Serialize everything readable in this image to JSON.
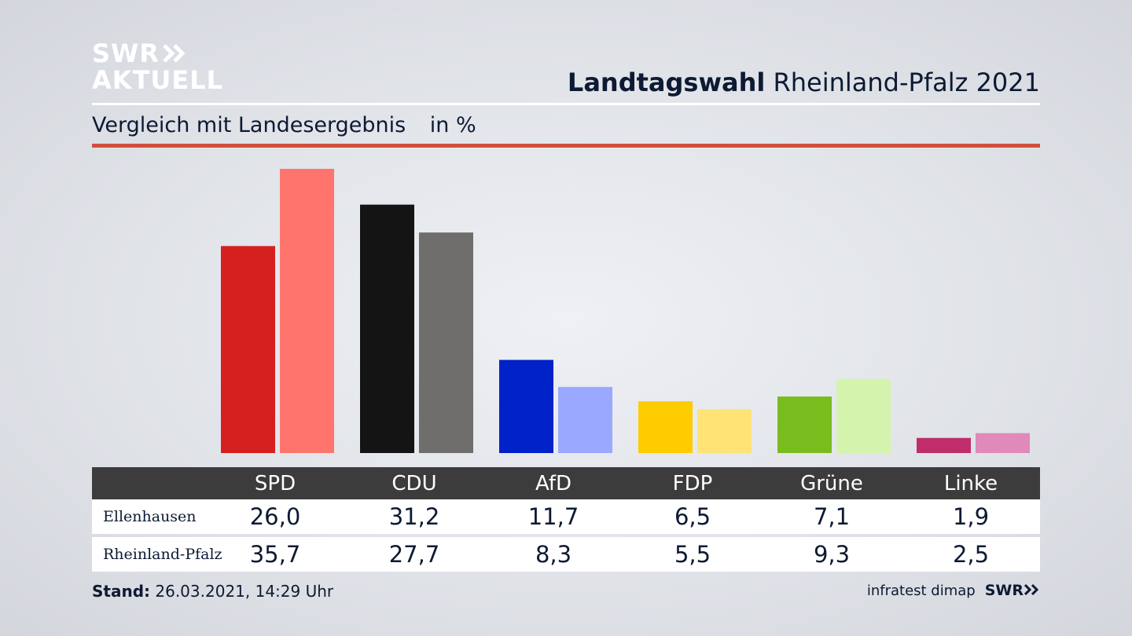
{
  "brand": {
    "logo_line1": "SWR",
    "logo_line2": "AKTUELL",
    "footer_logo": "SWR"
  },
  "header": {
    "title_bold": "Landtagswahl",
    "title_rest": "Rheinland-Pfalz 2021"
  },
  "subtitle": {
    "text": "Vergleich mit Landesergebnis",
    "unit": "in %"
  },
  "colors": {
    "accent_rule": "#d14f3c",
    "table_header_bg": "#3c3c3c"
  },
  "chart_data": {
    "type": "bar",
    "title": "Vergleich mit Landesergebnis",
    "unit": "in %",
    "categories": [
      "SPD",
      "CDU",
      "AfD",
      "FDP",
      "Grüne",
      "Linke"
    ],
    "series": [
      {
        "name": "Ellenhausen",
        "values": [
          26.0,
          31.2,
          11.7,
          6.5,
          7.1,
          1.9
        ],
        "colors": [
          "#d62020",
          "#141414",
          "#0022c8",
          "#ffcc00",
          "#78bc1e",
          "#bf2d6b"
        ]
      },
      {
        "name": "Rheinland-Pfalz",
        "values": [
          35.7,
          27.7,
          8.3,
          5.5,
          9.3,
          2.5
        ],
        "colors": [
          "#ff756e",
          "#6f6e6d",
          "#9aa8ff",
          "#ffe375",
          "#d4f4ad",
          "#df8ab8"
        ]
      }
    ],
    "ylim": [
      0,
      35.7
    ],
    "grid": false
  },
  "table": {
    "headers": [
      "SPD",
      "CDU",
      "AfD",
      "FDP",
      "Grüne",
      "Linke"
    ],
    "rows": [
      {
        "label": "Ellenhausen",
        "values": [
          "26,0",
          "31,2",
          "11,7",
          "6,5",
          "7,1",
          "1,9"
        ]
      },
      {
        "label": "Rheinland-Pfalz",
        "values": [
          "35,7",
          "27,7",
          "8,3",
          "5,5",
          "9,3",
          "2,5"
        ]
      }
    ]
  },
  "footer": {
    "stand_label": "Stand:",
    "stand_value": "26.03.2021, 14:29 Uhr",
    "source": "infratest dimap"
  }
}
